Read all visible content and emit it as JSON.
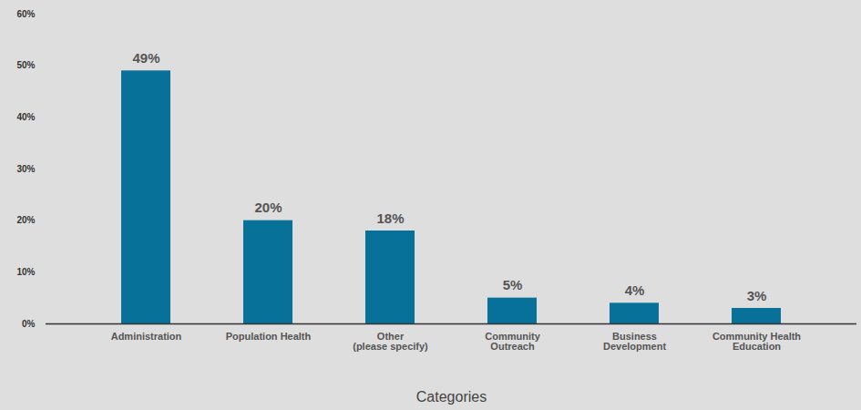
{
  "chart_data": {
    "type": "bar",
    "xlabel": "Categories",
    "categories": [
      "Administration",
      "Population Health",
      "Other\n(please specify)",
      "Community\nOutreach",
      "Business\nDevelopment",
      "Community Health\nEducation"
    ],
    "values": [
      49,
      20,
      18,
      5,
      4,
      3
    ],
    "value_labels": [
      "49%",
      "20%",
      "18%",
      "5%",
      "4%",
      "3%"
    ],
    "color": "#08719a",
    "ylim": [
      0,
      60
    ],
    "yticks": [
      {
        "value": 0,
        "label": "0%"
      },
      {
        "value": 10,
        "label": "10%"
      },
      {
        "value": 20,
        "label": "20%"
      },
      {
        "value": 30,
        "label": "30%"
      },
      {
        "value": 40,
        "label": "40%"
      },
      {
        "value": 50,
        "label": "50%"
      },
      {
        "value": 60,
        "label": "60%"
      }
    ],
    "grid": false,
    "data_labels": true
  }
}
